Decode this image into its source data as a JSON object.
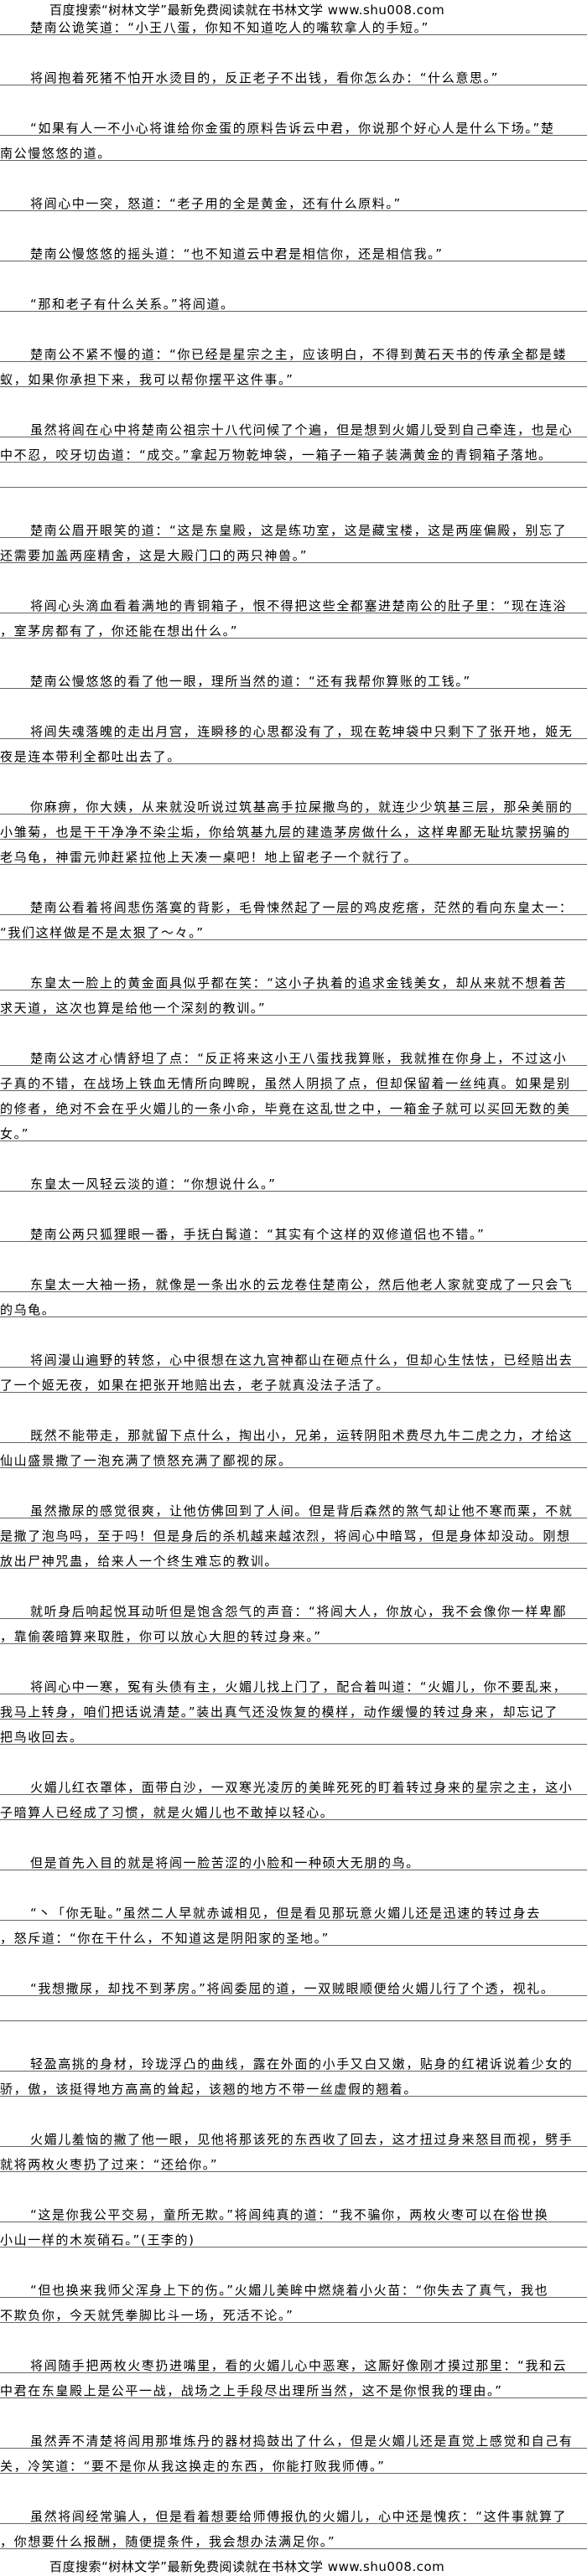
{
  "header": {
    "banner": "百度搜索“树林文学”最新免费阅读就在书林文学 www.shu008.com"
  },
  "paragraphs": [
    {
      "lines": [
        "楚南公诡笑道：“小王八蛋，你知不知道吃人的嘴软拿人的手短。”"
      ]
    },
    {
      "lines": [
        "将闾抱着死猪不怕开水烫目的，反正老子不出钱，看你怎么办：“什么意思。”"
      ]
    },
    {
      "lines": [
        "“如果有人一不小心将谁给你金蛋的原料告诉云中君，你说那个好心人是什么下场。”楚",
        "南公慢悠悠的道。"
      ]
    },
    {
      "lines": [
        "将闾心中一突，怒道：“老子用的全是黄金，还有什么原料。”"
      ]
    },
    {
      "lines": [
        "楚南公慢悠悠的摇头道：“也不知道云中君是相信你，还是相信我。”"
      ]
    },
    {
      "lines": [
        "“那和老子有什么关系。”将闾道。"
      ]
    },
    {
      "lines": [
        "楚南公不紧不慢的道：“你已经是星宗之主，应该明白，不得到黄石天书的传承全都是蝼",
        "蚁，如果你承担下来，我可以帮你摆平这件事。”"
      ]
    },
    {
      "lines": [
        "虽然将闾在心中将楚南公祖宗十八代问候了个遍，但是想到火媚儿受到自己牵连，也是心",
        "中不忍，咬牙切齿道：“成交。”拿起万物乾坤袋，一箱子一箱子装满黄金的青铜箱子落地。",
        ""
      ]
    },
    {
      "lines": [
        "楚南公眉开眼笑的道：“这是东皇殿，这是练功室，这是藏宝楼，这是两座偏殿，别忘了",
        "还需要加盖两座精舍，这是大殿门口的两只神兽。”"
      ]
    },
    {
      "lines": [
        "将闾心头滴血看着满地的青铜箱子，恨不得把这些全都塞进楚南公的肚子里：“现在连浴",
        "，室茅房都有了，你还能在想出什么。”"
      ]
    },
    {
      "lines": [
        "楚南公慢悠悠的看了他一眼，理所当然的道：“还有我帮你算账的工钱。”"
      ]
    },
    {
      "lines": [
        "将闾失魂落魄的走出月宫，连瞬移的心思都没有了，现在乾坤袋中只剩下了张开地，姬无",
        "夜是连本带利全都吐出去了。"
      ]
    },
    {
      "lines": [
        "你麻痹，你大姨，从来就没听说过筑基高手拉屎撒鸟的，就连少少筑基三层，那朵美丽的",
        "小雏菊，也是干干净净不染尘垢，你给筑基九层的建造茅房做什么，这样卑鄙无耻坑蒙拐骗的",
        "老乌龟，神雷元帅赶紧拉他上天凑一桌吧！地上留老子一个就行了。"
      ]
    },
    {
      "lines": [
        "楚南公看着将闾悲伤落寞的背影，毛骨悚然起了一层的鸡皮疙瘩，茫然的看向东皇太一：",
        "“我们这样做是不是太狠了～々。”"
      ]
    },
    {
      "lines": [
        "东皇太一脸上的黄金面具似乎都在笑：“这小子执着的追求金钱美女，却从来就不想着苦",
        "求天道，这次也算是给他一个深刻的教训。”"
      ]
    },
    {
      "lines": [
        "楚南公这才心情舒坦了点：“反正将来这小王八蛋找我算账，我就推在你身上，不过这小",
        "子真的不错，在战场上铁血无情所向睥睨，虽然人阴损了点，但却保留着一丝纯真。如果是别",
        "的修者，绝对不会在乎火媚儿的一条小命，毕竟在这乱世之中，一箱金子就可以买回无数的美",
        "女。”"
      ]
    },
    {
      "lines": [
        "东皇太一风轻云淡的道：“你想说什么。”"
      ]
    },
    {
      "lines": [
        "楚南公两只狐狸眼一番，手抚白髯道：“其实有个这样的双修道侣也不错。”"
      ]
    },
    {
      "lines": [
        "东皇太一大袖一扬，就像是一条出水的云龙卷住楚南公，然后他老人家就变成了一只会飞",
        "的乌龟。"
      ]
    },
    {
      "lines": [
        "将闾漫山遍野的转悠，心中很想在这九宫神都山在砸点什么，但却心生怯怯，已经赔出去",
        "了一个姬无夜，如果在把张开地赔出去，老子就真没法子活了。"
      ]
    },
    {
      "lines": [
        "既然不能带走，那就留下点什么，掏出小，兄弟，运转阴阳术费尽九牛二虎之力，才给这",
        "仙山盛景撒了一泡充满了愤怒充满了鄙视的尿。"
      ]
    },
    {
      "lines": [
        "虽然撒尿的感觉很爽，让他仿佛回到了人间。但是背后森然的煞气却让他不寒而栗，不就",
        "是撒了泡鸟吗，至于吗！但是身后的杀机越来越浓烈，将闾心中暗骂，但是身体却没动。刚想",
        "放出尸神咒蛊，给来人一个终生难忘的教训。"
      ]
    },
    {
      "lines": [
        "就听身后响起悦耳动听但是饱含怨气的声音：“将闾大人，你放心，我不会像你一样卑鄙",
        "，靠偷袭暗算来取胜，你可以放心大胆的转过身来。”"
      ]
    },
    {
      "lines": [
        "将闾心中一寒，冤有头债有主，火媚儿找上门了，配合着叫道：“火媚儿，你不要乱来，",
        "我马上转身，咱们把话说清楚。”装出真气还没恢复的模样，动作缓慢的转过身来，却忘记了",
        "把鸟收回去。"
      ]
    },
    {
      "lines": [
        "火媚儿红衣罩体，面带白沙，一双寒光凌厉的美眸死死的盯着转过身来的星宗之主，这小",
        "子暗算人已经成了习惯，就是火媚儿也不敢掉以轻心。"
      ]
    },
    {
      "lines": [
        "但是首先入目的就是将闾一脸苦涩的小脸和一种硕大无朋的鸟。"
      ]
    },
    {
      "lines": [
        "“丶「你无耻。”虽然二人早就赤诚相见，但是看见那玩意火媚儿还是迅速的转过身去",
        "，怒斥道：“你在干什么，不知道这是阴阳家的圣地。”"
      ]
    },
    {
      "lines": [
        "“我想撒尿，却找不到茅房。”将闾委屈的道，一双贼眼顺便给火媚儿行了个透，视礼。",
        ""
      ]
    },
    {
      "lines": [
        "轻盈高挑的身材，玲珑浮凸的曲线，露在外面的小手又白又嫩，贴身的红裙诉说着少女的",
        "骄，傲，该挺得地方高高的耸起，该翘的地方不带一丝虚假的翘着。"
      ]
    },
    {
      "lines": [
        "火媚儿羞恼的撇了他一眼，见他将那该死的东西收了回去，这才扭过身来怒目而视，劈手",
        "就将两枚火枣扔了过来：“还给你。”"
      ]
    },
    {
      "lines": [
        "“这是你我公平交易，童所无欺。”将闾纯真的道：“我不骗你，两枚火枣可以在俗世换",
        "小山一样的木炭硝石。”(王李的)"
      ]
    },
    {
      "lines": [
        "“但也换来我师父浑身上下的伤。”火媚儿美眸中燃烧着小火苗：“你失去了真气，我也",
        "不欺负你，今天就凭拳脚比斗一场，死活不论。”"
      ]
    },
    {
      "lines": [
        "将闾随手把两枚火枣扔进嘴里，看的火媚儿心中恶寒，这厮好像刚才摸过那里：“我和云",
        "中君在东皇殿上是公平一战，战场之上手段尽出理所当然，这不是你恨我的理由。”"
      ]
    },
    {
      "lines": [
        "虽然弄不清楚将闾用那堆炼丹的器材捣鼓出了什么，但是火媚儿还是直觉上感觉和自己有",
        "关，冷笑道：“要不是你从我这换走的东西，你能打败我师傅。”"
      ]
    },
    {
      "lines": [
        "虽然将闾经常骗人，但是看着想要给师傅报仇的火媚儿，心中还是愧疚：“这件事就算了",
        "，你想要什么报酬，随便提条件，我会想办法满足你。”"
      ]
    }
  ],
  "footer": {
    "banner": "百度搜索“树林文学”最新免费阅读就在书林文学 www.shu008.com"
  }
}
